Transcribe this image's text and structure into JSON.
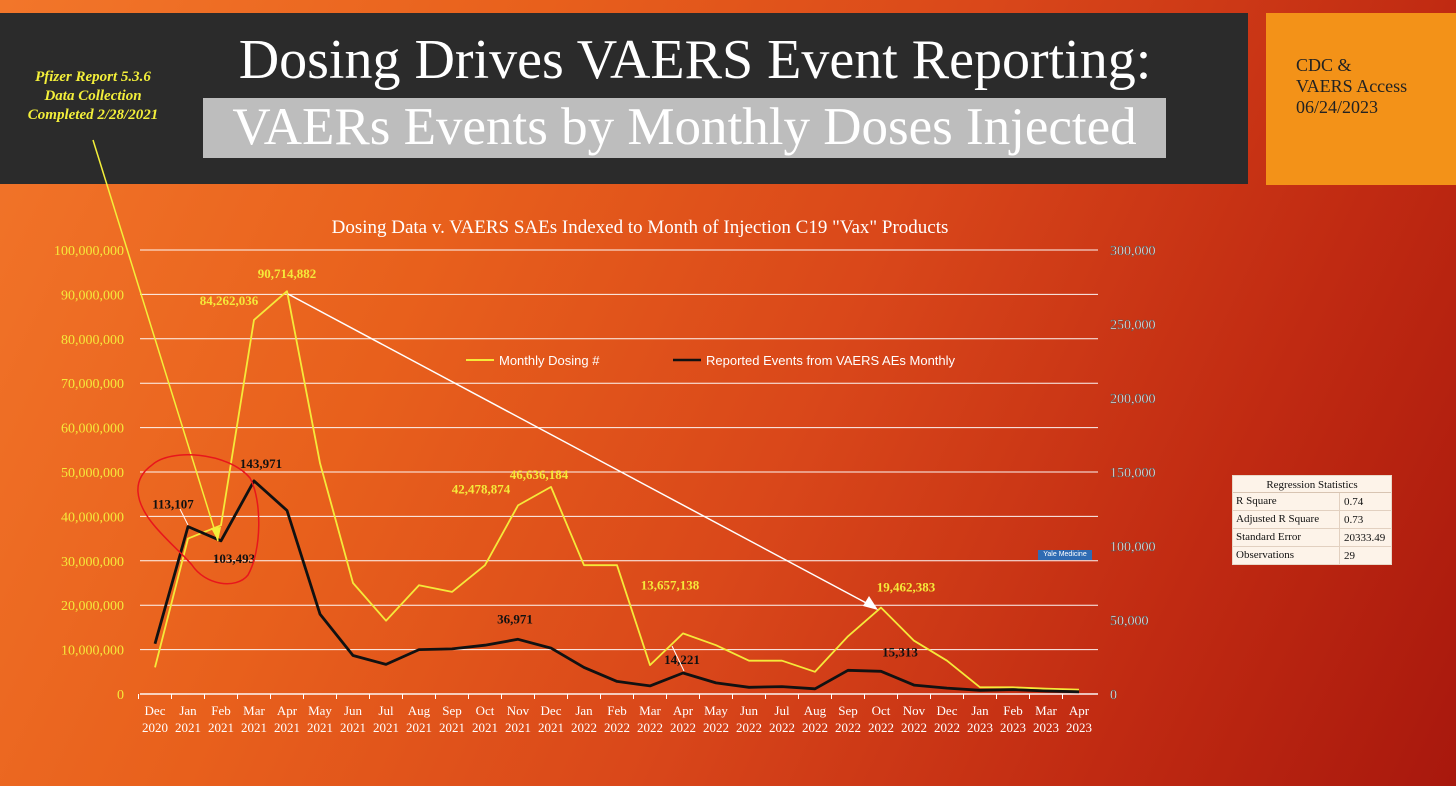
{
  "header": {
    "title_line1": "Dosing Drives VAERS Event Reporting:",
    "title_line2": "VAERs Events by Monthly Doses Injected"
  },
  "source": {
    "lines": [
      "CDC &",
      "VAERS Access",
      "06/24/2023"
    ]
  },
  "pfizer_note": {
    "lines": [
      "Pfizer Report 5.3.6",
      "Data Collection",
      "Completed 2/28/2021"
    ]
  },
  "badge": {
    "text": "Yale Medicine"
  },
  "regression": {
    "title": "Regression Statistics",
    "rows": [
      {
        "label": "R Square",
        "value": "0.74"
      },
      {
        "label": "Adjusted R Square",
        "value": "0.73"
      },
      {
        "label": "Standard Error",
        "value": "20333.49"
      },
      {
        "label": "Observations",
        "value": "29"
      }
    ]
  },
  "colors": {
    "dosing_line": "#f5e93a",
    "events_line": "#111111",
    "grid": "#ffffff",
    "left_axis_text": "#f5e93a",
    "right_axis_text": "#ffffff"
  },
  "chart_data": {
    "type": "line",
    "title": "Dosing Data v. VAERS SAEs Indexed to Month of Injection C19 \"Vax\" Products",
    "categories": [
      [
        "Dec",
        "2020"
      ],
      [
        "Jan",
        "2021"
      ],
      [
        "Feb",
        "2021"
      ],
      [
        "Mar",
        "2021"
      ],
      [
        "Apr",
        "2021"
      ],
      [
        "May",
        "2021"
      ],
      [
        "Jun",
        "2021"
      ],
      [
        "Jul",
        "2021"
      ],
      [
        "Aug",
        "2021"
      ],
      [
        "Sep",
        "2021"
      ],
      [
        "Oct",
        "2021"
      ],
      [
        "Nov",
        "2021"
      ],
      [
        "Dec",
        "2021"
      ],
      [
        "Jan",
        "2022"
      ],
      [
        "Feb",
        "2022"
      ],
      [
        "Mar",
        "2022"
      ],
      [
        "Apr",
        "2022"
      ],
      [
        "May",
        "2022"
      ],
      [
        "Jun",
        "2022"
      ],
      [
        "Jul",
        "2022"
      ],
      [
        "Aug",
        "2022"
      ],
      [
        "Sep",
        "2022"
      ],
      [
        "Oct",
        "2022"
      ],
      [
        "Nov",
        "2022"
      ],
      [
        "Dec",
        "2022"
      ],
      [
        "Jan",
        "2023"
      ],
      [
        "Feb",
        "2023"
      ],
      [
        "Mar",
        "2023"
      ],
      [
        "Apr",
        "2023"
      ]
    ],
    "y_left": {
      "min": 0,
      "max": 100000000,
      "ticks": [
        "0",
        "10,000,000",
        "20,000,000",
        "30,000,000",
        "40,000,000",
        "50,000,000",
        "60,000,000",
        "70,000,000",
        "80,000,000",
        "90,000,000",
        "100,000,000"
      ]
    },
    "y_right": {
      "min": 0,
      "max": 300000,
      "ticks": [
        "0",
        "50,000",
        "100,000",
        "150,000",
        "200,000",
        "250,000",
        "300,000"
      ]
    },
    "grid": true,
    "legend_position": "top-center",
    "series": [
      {
        "name": "Monthly Dosing #",
        "axis": "left",
        "color": "#f5e93a",
        "values": [
          6000000,
          35000000,
          38000000,
          84262036,
          90714882,
          52000000,
          25000000,
          16500000,
          24500000,
          23000000,
          29000000,
          42478874,
          46636184,
          29000000,
          29000000,
          6500000,
          13657138,
          11000000,
          7500000,
          7500000,
          5000000,
          13000000,
          19462383,
          12000000,
          7500000,
          1500000,
          1500000,
          1200000,
          1000000
        ]
      },
      {
        "name": "Reported Events from VAERS AEs Monthly",
        "axis": "right",
        "color": "#111111",
        "values": [
          34000,
          113107,
          103493,
          143971,
          124000,
          54000,
          26000,
          20000,
          30000,
          30500,
          33000,
          36971,
          31000,
          18000,
          8500,
          5500,
          14221,
          7500,
          4500,
          5000,
          3500,
          16000,
          15313,
          6000,
          4000,
          2500,
          3000,
          2000,
          1500
        ]
      }
    ],
    "data_labels": [
      {
        "series": 0,
        "index": 3,
        "text": "84,262,036"
      },
      {
        "series": 0,
        "index": 4,
        "text": "90,714,882"
      },
      {
        "series": 0,
        "index": 11,
        "text": "42,478,874"
      },
      {
        "series": 0,
        "index": 12,
        "text": "46,636,184"
      },
      {
        "series": 0,
        "index": 16,
        "text": "13,657,138"
      },
      {
        "series": 0,
        "index": 22,
        "text": "19,462,383"
      },
      {
        "series": 1,
        "index": 1,
        "text": "113,107"
      },
      {
        "series": 1,
        "index": 2,
        "text": "103,493"
      },
      {
        "series": 1,
        "index": 3,
        "text": "143,971"
      },
      {
        "series": 1,
        "index": 11,
        "text": "36,971"
      },
      {
        "series": 1,
        "index": 16,
        "text": "14,221"
      },
      {
        "series": 1,
        "index": 22,
        "text": "15,313"
      }
    ]
  }
}
